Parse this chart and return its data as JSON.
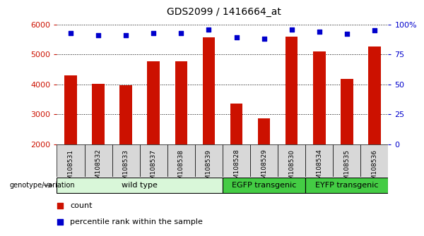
{
  "title": "GDS2099 / 1416664_at",
  "samples": [
    "GSM108531",
    "GSM108532",
    "GSM108533",
    "GSM108537",
    "GSM108538",
    "GSM108539",
    "GSM108528",
    "GSM108529",
    "GSM108530",
    "GSM108534",
    "GSM108535",
    "GSM108536"
  ],
  "counts": [
    4300,
    4020,
    3970,
    4760,
    4780,
    5560,
    3360,
    2870,
    5590,
    5090,
    4170,
    5270
  ],
  "percentiles": [
    93,
    91,
    91,
    93,
    93,
    96,
    89,
    88,
    96,
    94,
    92,
    95
  ],
  "groups": [
    {
      "label": "wild type",
      "start": 0,
      "end": 6,
      "color": "#d9f7d9"
    },
    {
      "label": "EGFP transgenic",
      "start": 6,
      "end": 9,
      "color": "#44cc44"
    },
    {
      "label": "EYFP transgenic",
      "start": 9,
      "end": 12,
      "color": "#44cc44"
    }
  ],
  "ymin": 2000,
  "ymax": 6000,
  "yticks_left": [
    2000,
    3000,
    4000,
    5000,
    6000
  ],
  "yticks_right": [
    0,
    25,
    50,
    75,
    100
  ],
  "bar_color": "#cc1100",
  "dot_color": "#0000cc",
  "left_label_color": "#cc1100",
  "right_label_color": "#0000cc"
}
